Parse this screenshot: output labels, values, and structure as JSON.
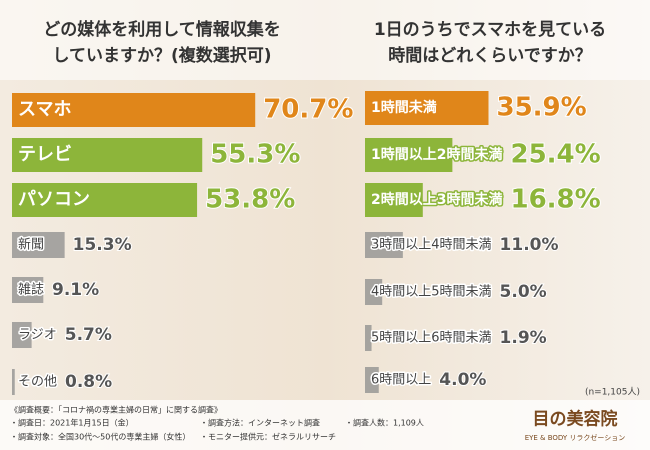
{
  "chart_data": [
    {
      "type": "bar",
      "title": [
        "どの媒体を利用して情報収集を",
        "していますか？(複数選択可)"
      ],
      "categories": [
        "スマホ",
        "テレビ",
        "パソコン",
        "新聞",
        "雑誌",
        "ラジオ",
        "その他"
      ],
      "values": [
        70.7,
        55.3,
        53.8,
        15.3,
        9.1,
        5.7,
        0.8
      ],
      "value_labels": [
        "70.7%",
        "55.3%",
        "53.8%",
        "15.3%",
        "9.1%",
        "5.7%",
        "0.8%"
      ],
      "colors": [
        "#e0861a",
        "#8db53a",
        "#8db53a",
        "#8c8c8c",
        "#8c8c8c",
        "#8c8c8c",
        "#8c8c8c"
      ]
    },
    {
      "type": "bar",
      "title": [
        "1日のうちでスマホを見ている",
        "時間はどれくらいですか？"
      ],
      "categories": [
        "1時間未満",
        "1時間以上2時間未満",
        "2時間以上3時間未満",
        "3時間以上4時間未満",
        "4時間以上5時間未満",
        "5時間以上6時間未満",
        "6時間以上"
      ],
      "values": [
        35.9,
        25.4,
        16.8,
        11,
        5,
        1.9,
        4
      ],
      "value_labels": [
        "35.9%",
        "25.4%",
        "16.8%",
        "11.0%",
        "5.0%",
        "1.9%",
        "4.0%"
      ],
      "colors": [
        "#e0861a",
        "#8db53a",
        "#8db53a",
        "#8c8c8c",
        "#8c8c8c",
        "#8c8c8c",
        "#8c8c8c"
      ],
      "note": "(n=1,105人)"
    }
  ],
  "survey": {
    "heading": "《調査概要：「コロナ禍の専業主婦の日常」に関する調査》",
    "items": [
      "・調査日：2021年1月15日（金）",
      "・調査方法：インターネット調査",
      "・調査人数：1,109人",
      "・調査対象：全国30代〜50代の専業主婦（女性）",
      "・モニター提供元：ゼネラルリサーチ"
    ]
  },
  "logo": {
    "name": "目の美容院",
    "tagline": "EYE & BODY リラクゼーション"
  }
}
